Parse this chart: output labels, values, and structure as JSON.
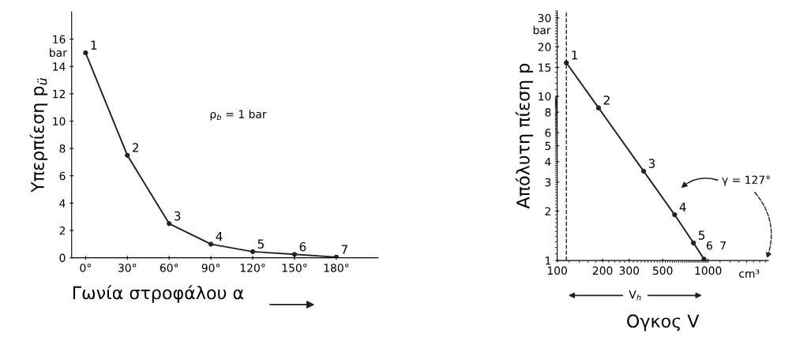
{
  "chart_data": [
    {
      "type": "line",
      "xlabel": "Γωνία στροφάλου α",
      "ylabel": "Υπερπίεση p$_{ü}$",
      "x": [
        0,
        30,
        60,
        90,
        120,
        150,
        180
      ],
      "series": [
        {
          "color": "#222222",
          "values": [
            15,
            7.5,
            2.5,
            1.0,
            0.45,
            0.25,
            0.05
          ]
        }
      ],
      "xlim": [
        -10,
        210
      ],
      "ylim": [
        0,
        18
      ],
      "xticks": [
        {
          "value": 0,
          "label": "0°"
        },
        {
          "value": 30,
          "label": "30°"
        },
        {
          "value": 60,
          "label": "60°"
        },
        {
          "value": 90,
          "label": "90°"
        },
        {
          "value": 120,
          "label": "120°"
        },
        {
          "value": 150,
          "label": "150°"
        },
        {
          "value": 180,
          "label": "180°"
        }
      ],
      "yticks": [
        0,
        2,
        4,
        6,
        8,
        10,
        12,
        14,
        16
      ],
      "marker": "circle",
      "line_style": "solid",
      "grid": false,
      "legend": false,
      "annotations": [
        "bar",
        "ρ$_{b}$ = 1 bar",
        {
          "text": "1",
          "x": 0,
          "y": 15
        },
        {
          "text": "2",
          "x": 30,
          "y": 7.5
        },
        {
          "text": "3",
          "x": 60,
          "y": 2.5
        },
        {
          "text": "4",
          "x": 90,
          "y": 1.0
        },
        {
          "text": "5",
          "x": 120,
          "y": 0.45
        },
        {
          "text": "6",
          "x": 150,
          "y": 0.25
        },
        {
          "text": "7",
          "x": 180,
          "y": 0.05
        }
      ]
    },
    {
      "type": "line",
      "xlabel": "Ογκος V",
      "ylabel": "Απόλυτη πίεση p",
      "log": "xy",
      "x": [
        115,
        188,
        374,
        600,
        800,
        940
      ],
      "series": [
        {
          "color": "#222222",
          "values": [
            16,
            8.5,
            3.5,
            1.9,
            1.28,
            1.02
          ]
        }
      ],
      "xlim": [
        100,
        2500
      ],
      "ylim": [
        1,
        33
      ],
      "xticks": [
        100,
        200,
        300,
        500,
        1000
      ],
      "yticks": [
        1,
        2,
        3,
        4,
        5,
        6,
        8,
        10,
        15,
        20,
        30
      ],
      "marker": "circle",
      "line_style": "solid",
      "grid": false,
      "legend": false,
      "ref_lines": [
        {
          "axis": "x",
          "value": 115,
          "line_style": "dashed",
          "color": "#222222"
        }
      ],
      "annotations": [
        "bar",
        "cm³",
        "γ = 127°",
        "V$_{h}$",
        "6",
        "7",
        {
          "text": "1",
          "x": 115,
          "y": 16
        },
        {
          "text": "2",
          "x": 188,
          "y": 8.5
        },
        {
          "text": "3",
          "x": 374,
          "y": 3.5
        },
        {
          "text": "4",
          "x": 600,
          "y": 1.9
        },
        {
          "text": "5",
          "x": 800,
          "y": 1.28
        }
      ]
    }
  ]
}
